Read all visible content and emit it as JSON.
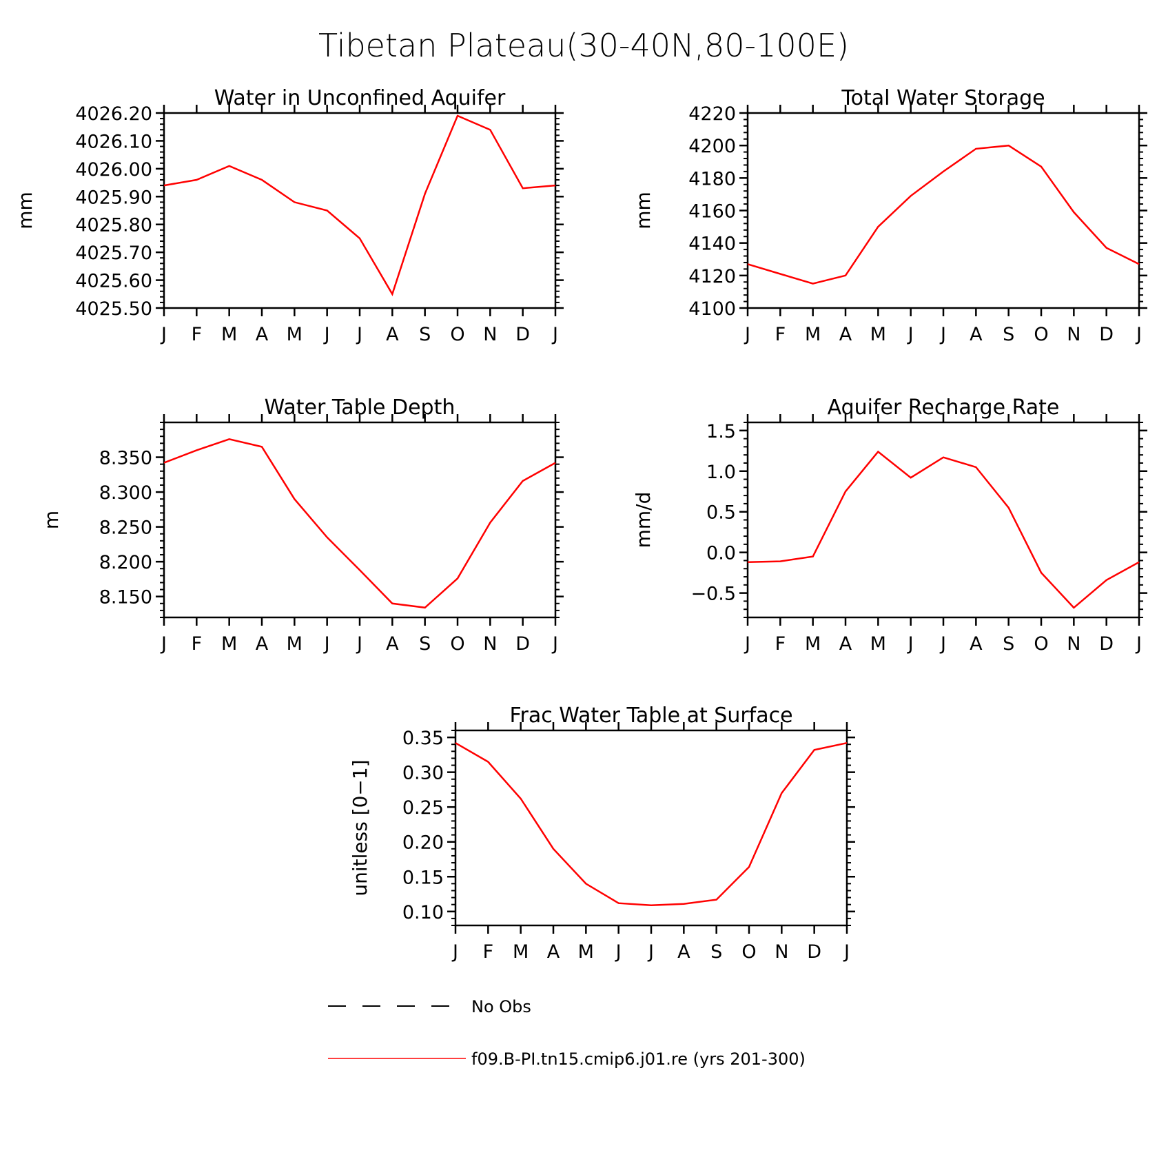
{
  "figure": {
    "title": "Tibetan Plateau(30-40N,80-100E)",
    "months": [
      "J",
      "F",
      "M",
      "A",
      "M",
      "J",
      "J",
      "A",
      "S",
      "O",
      "N",
      "D",
      "J"
    ],
    "line_color": "#ff0000",
    "legend": {
      "entries": [
        {
          "label": "No Obs",
          "style": "dashed",
          "color": "#000000"
        },
        {
          "label": "f09.B-PI.tn15.cmip6.j01.re (yrs 201-300)",
          "style": "solid",
          "color": "#ff0000"
        }
      ]
    }
  },
  "chart_data": [
    {
      "type": "line",
      "title": "Water in Unconfined Aquifer",
      "xlabel": "",
      "ylabel": "mm",
      "categories": [
        "J",
        "F",
        "M",
        "A",
        "M",
        "J",
        "J",
        "A",
        "S",
        "O",
        "N",
        "D",
        "J"
      ],
      "ylim": [
        4025.5,
        4026.2
      ],
      "yticks": [
        4025.5,
        4025.6,
        4025.7,
        4025.8,
        4025.9,
        4026.0,
        4026.1,
        4026.2
      ],
      "ytick_labels": [
        "4025.50",
        "4025.60",
        "4025.70",
        "4025.80",
        "4025.90",
        "4026.00",
        "4026.10",
        "4026.20"
      ],
      "series": [
        {
          "values": [
            4025.94,
            4025.96,
            4026.01,
            4025.96,
            4025.88,
            4025.85,
            4025.75,
            4025.55,
            4025.91,
            4026.19,
            4026.14,
            4025.93,
            4025.94
          ]
        }
      ]
    },
    {
      "type": "line",
      "title": "Total Water Storage",
      "xlabel": "",
      "ylabel": "mm",
      "categories": [
        "J",
        "F",
        "M",
        "A",
        "M",
        "J",
        "J",
        "A",
        "S",
        "O",
        "N",
        "D",
        "J"
      ],
      "ylim": [
        4100,
        4220
      ],
      "yticks": [
        4100,
        4120,
        4140,
        4160,
        4180,
        4200,
        4220
      ],
      "ytick_labels": [
        "4100",
        "4120",
        "4140",
        "4160",
        "4180",
        "4200",
        "4220"
      ],
      "series": [
        {
          "values": [
            4127,
            4121,
            4115,
            4120,
            4150,
            4169,
            4184,
            4198,
            4200,
            4187,
            4159,
            4137,
            4127
          ]
        }
      ]
    },
    {
      "type": "line",
      "title": "Water Table Depth",
      "xlabel": "",
      "ylabel": "m",
      "categories": [
        "J",
        "F",
        "M",
        "A",
        "M",
        "J",
        "J",
        "A",
        "S",
        "O",
        "N",
        "D",
        "J"
      ],
      "ylim": [
        8.12,
        8.4
      ],
      "yticks": [
        8.15,
        8.2,
        8.25,
        8.3,
        8.35
      ],
      "ytick_labels": [
        "8.150",
        "8.200",
        "8.250",
        "8.300",
        "8.350"
      ],
      "series": [
        {
          "values": [
            8.342,
            8.36,
            8.376,
            8.365,
            8.29,
            8.235,
            8.188,
            8.14,
            8.134,
            8.176,
            8.256,
            8.316,
            8.342
          ]
        }
      ]
    },
    {
      "type": "line",
      "title": "Aquifer Recharge Rate",
      "xlabel": "",
      "ylabel": "mm/d",
      "categories": [
        "J",
        "F",
        "M",
        "A",
        "M",
        "J",
        "J",
        "A",
        "S",
        "O",
        "N",
        "D",
        "J"
      ],
      "ylim": [
        -0.8,
        1.6
      ],
      "yticks": [
        -0.5,
        0.0,
        0.5,
        1.0,
        1.5
      ],
      "ytick_labels": [
        "−0.5",
        "0.0",
        "0.5",
        "1.0",
        "1.5"
      ],
      "series": [
        {
          "values": [
            -0.12,
            -0.11,
            -0.05,
            0.75,
            1.24,
            0.92,
            1.17,
            1.05,
            0.55,
            -0.25,
            -0.68,
            -0.34,
            -0.12
          ]
        }
      ]
    },
    {
      "type": "line",
      "title": "Frac Water Table at Surface",
      "xlabel": "",
      "ylabel": "unitless [0−1]",
      "categories": [
        "J",
        "F",
        "M",
        "A",
        "M",
        "J",
        "J",
        "A",
        "S",
        "O",
        "N",
        "D",
        "J"
      ],
      "ylim": [
        0.08,
        0.36
      ],
      "yticks": [
        0.1,
        0.15,
        0.2,
        0.25,
        0.3,
        0.35
      ],
      "ytick_labels": [
        "0.10",
        "0.15",
        "0.20",
        "0.25",
        "0.30",
        "0.35"
      ],
      "series": [
        {
          "values": [
            0.342,
            0.315,
            0.262,
            0.19,
            0.14,
            0.112,
            0.109,
            0.111,
            0.117,
            0.164,
            0.27,
            0.332,
            0.342
          ]
        }
      ]
    }
  ]
}
